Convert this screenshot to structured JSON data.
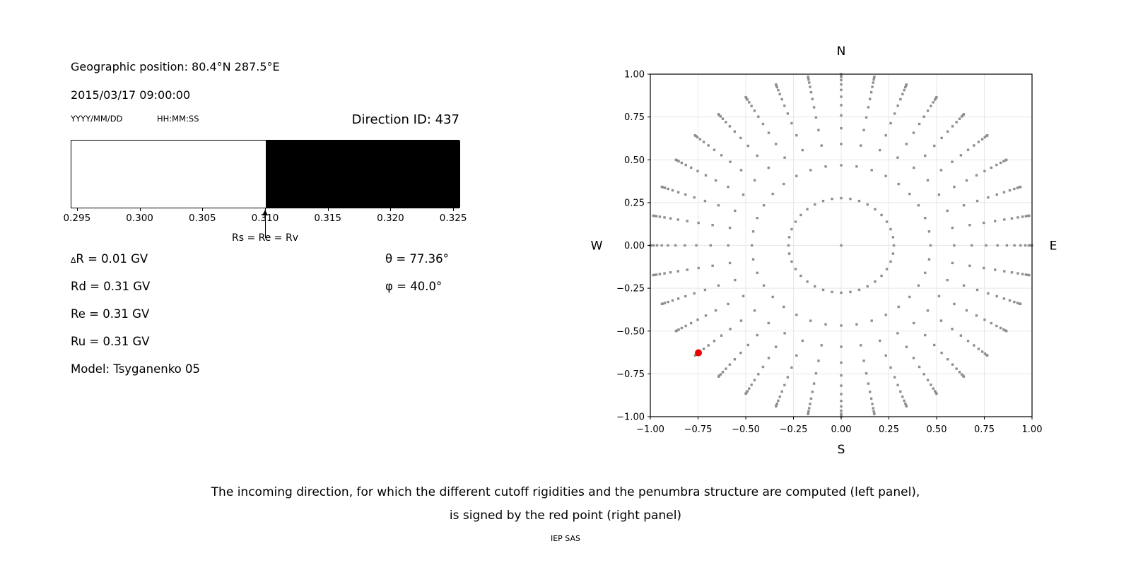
{
  "left_panel": {
    "geo_position": "Geographic position: 80.4°N 287.5°E",
    "datetime": "2015/03/17 09:00:00",
    "date_format": "YYYY/MM/DD",
    "time_format": "HH:MM:SS",
    "direction_id": "Direction ID: 437",
    "values": {
      "delta_symbol": "∆",
      "delta_r": "R = 0.01 GV",
      "rd": "Rd = 0.31 GV",
      "re": "Re = 0.31 GV",
      "ru": "Ru = 0.31 GV",
      "model": "Model: Tsyganenko 05",
      "theta": "θ = 77.36°",
      "phi": "φ = 40.0°"
    }
  },
  "chart_data": [
    {
      "id": "penumbra",
      "type": "heatmap",
      "title": "",
      "xlabel": "",
      "xlim": [
        0.2945,
        0.3255
      ],
      "xtick_values": [
        0.295,
        0.3,
        0.305,
        0.31,
        0.315,
        0.32,
        0.325
      ],
      "xtick_labels": [
        "0.295",
        "0.300",
        "0.305",
        "0.310",
        "0.315",
        "0.320",
        "0.325"
      ],
      "segments": [
        {
          "from": 0.2945,
          "to": 0.31,
          "fill": "#ffffff"
        },
        {
          "from": 0.31,
          "to": 0.3255,
          "fill": "#000000"
        }
      ],
      "annotation": {
        "value": 0.31,
        "label": "Rs = Re = Rv"
      }
    },
    {
      "id": "direction_map",
      "type": "scatter",
      "title": "",
      "cardinal_labels": {
        "top": "N",
        "bottom": "S",
        "left": "W",
        "right": "E"
      },
      "xlim": [
        -1,
        1
      ],
      "ylim": [
        -1,
        1
      ],
      "xtick_values": [
        -1,
        -0.75,
        -0.5,
        -0.25,
        0,
        0.25,
        0.5,
        0.75,
        1
      ],
      "xtick_labels": [
        "−1.00",
        "−0.75",
        "−0.50",
        "−0.25",
        "0.00",
        "0.25",
        "0.50",
        "0.75",
        "1.00"
      ],
      "ytick_values": [
        1,
        0.75,
        0.5,
        0.25,
        0,
        -0.25,
        -0.5,
        -0.75,
        -1
      ],
      "ytick_labels": [
        "1.00",
        "0.75",
        "0.50",
        "0.25",
        "0.00",
        "−0.25",
        "−0.50",
        "−0.75",
        "−1.00"
      ],
      "grid": true,
      "grid_color": "#e7e7e7",
      "direction_grid": {
        "marker": "square",
        "marker_color": "#8f8f8f",
        "marker_size_px": 3.4,
        "azimuth_step_deg": 10,
        "ring_radii": [
          0.276,
          0.468,
          0.592,
          0.684,
          0.759,
          0.819,
          0.868,
          0.908,
          0.94,
          0.965,
          0.983,
          0.994,
          0.9995
        ],
        "includes_center_point": true
      },
      "red_point": {
        "x": -0.748,
        "y": -0.627,
        "color": "#ee0000",
        "radius_px": 5
      }
    }
  ],
  "caption": {
    "line1": "The incoming direction, for which the different cutoff rigidities and the penumbra structure are computed (left panel),",
    "line2": "is signed by the red point (right panel)",
    "credit": "IEP SAS"
  }
}
